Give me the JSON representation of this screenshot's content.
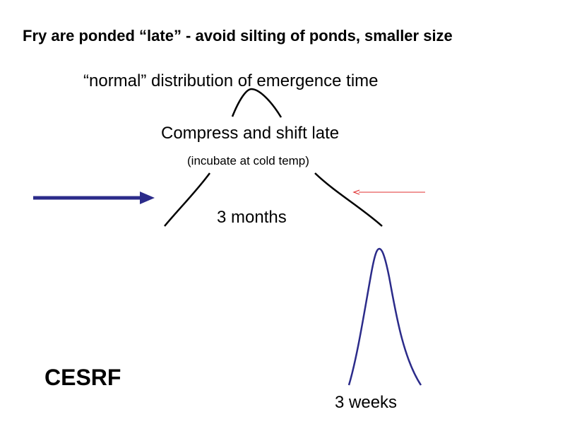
{
  "slide": {
    "title": "Fry are ponded “late” - avoid silting of ponds, smaller size",
    "normal_label": "“normal” distribution of emergence time",
    "compress_label": "Compress and shift late",
    "incubate_label": "(incubate at cold temp)",
    "duration_broad": "3 months",
    "duration_narrow": "3 weeks",
    "logo_text": "CESRF"
  },
  "colors": {
    "broad_curve": "#000000",
    "narrow_curve": "#2b2b8a",
    "big_arrow": "#2b2b8a",
    "small_arrow": "#e03030"
  }
}
